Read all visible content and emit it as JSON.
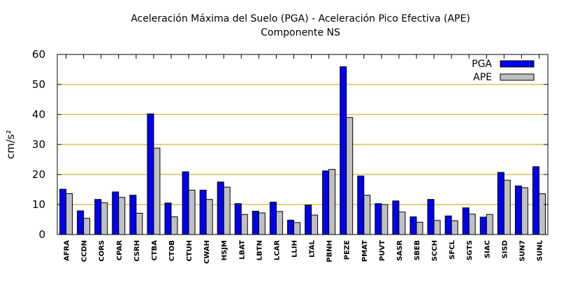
{
  "chart_data": {
    "type": "bar",
    "title": "Aceleración Máxima del Suelo (PGA) -  Aceleración Pico Efectiva (APE)",
    "subtitle": "Componente NS",
    "ylabel": "cm/s²",
    "xlabel": "",
    "ylim": [
      0,
      60
    ],
    "yticks": [
      0,
      10,
      20,
      30,
      40,
      50,
      60
    ],
    "grid": true,
    "legend_position": "top-right",
    "categories": [
      "AFRA",
      "CCDN",
      "CORS",
      "CPAR",
      "CSRH",
      "CTBA",
      "CTOB",
      "CTUH",
      "CWAH",
      "HSJM",
      "LBAT",
      "LBTN",
      "LCAR",
      "LLIH",
      "LTAL",
      "PBNH",
      "PEZE",
      "PMAT",
      "PUVT",
      "SASR",
      "SBEB",
      "SCCH",
      "SFCL",
      "SGTS",
      "SIAC",
      "SISD",
      "SUN7",
      "SUNL"
    ],
    "series": [
      {
        "name": "PGA",
        "color": "#0000ee",
        "values": [
          15.1,
          7.9,
          11.7,
          14.2,
          13.1,
          40.2,
          10.5,
          20.9,
          14.8,
          17.5,
          10.3,
          7.8,
          10.8,
          4.8,
          9.8,
          21.2,
          55.9,
          19.5,
          10.3,
          11.2,
          5.9,
          11.7,
          6.2,
          8.9,
          5.8,
          20.7,
          16.2,
          22.6
        ]
      },
      {
        "name": "APE",
        "color": "#c0c0c0",
        "values": [
          13.6,
          5.4,
          10.6,
          12.4,
          7.1,
          28.8,
          5.9,
          14.8,
          11.7,
          15.8,
          6.7,
          7.2,
          7.7,
          4.0,
          6.5,
          21.7,
          39.0,
          13.1,
          10.0,
          7.5,
          4.1,
          4.7,
          4.6,
          6.8,
          6.7,
          18.1,
          15.6,
          13.6
        ]
      }
    ],
    "grid_color": "#c8a000",
    "outline_color": "#000000"
  }
}
